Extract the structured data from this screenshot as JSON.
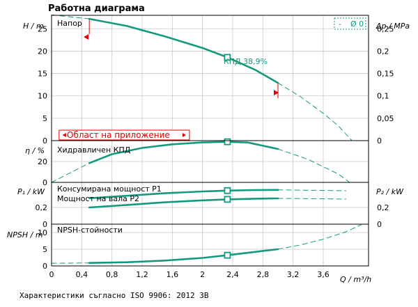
{
  "colors": {
    "curve": "#139a7e",
    "grid": "#c8c8c8",
    "frame": "#000000",
    "range": "#e00000"
  },
  "page_title": "Работна диаграма",
  "footer": "Характеристики съгласно ISO 9906: 2012 3B",
  "legend": {
    "dash_label": "-",
    "series_label": "Ø 0"
  },
  "x_axis": {
    "label": "Q / m³/h",
    "ticks": [
      0,
      0.4,
      0.8,
      1.2,
      1.6,
      2,
      2.4,
      2.8,
      3.2,
      3.6
    ],
    "tick_labels": [
      "0",
      "0,4",
      "0,8",
      "1,2",
      "1,6",
      "2",
      "2,4",
      "2,8",
      "3,2",
      "3,6"
    ],
    "xlim": [
      0,
      4.2
    ]
  },
  "chart_data": [
    {
      "type": "line",
      "panel": "head",
      "title": "Напор",
      "ylabel": "H / m",
      "ylabel_right": "Δp / MPa",
      "ylim": [
        0,
        28
      ],
      "yticks": [
        0,
        5,
        10,
        15,
        20,
        25
      ],
      "yticks_right": [
        "0",
        "0,05",
        "0,1",
        "0,15",
        "0,2",
        "0,25"
      ],
      "series": [
        {
          "line": "solid",
          "x": [
            0.5,
            1.0,
            1.5,
            2.0,
            2.33,
            2.7,
            3.0
          ],
          "y": [
            27.2,
            25.6,
            23.3,
            20.7,
            18.6,
            15.8,
            12.9
          ]
        },
        {
          "line": "dashed",
          "x": [
            0,
            0.5
          ],
          "y": [
            28.1,
            27.2
          ]
        },
        {
          "line": "dashed",
          "x": [
            3.0,
            3.3,
            3.6,
            3.8,
            3.98
          ],
          "y": [
            12.9,
            9.8,
            6.1,
            3.3,
            0
          ]
        }
      ],
      "operating_point": {
        "x": 2.33,
        "y": 18.6,
        "label": "КПД  38,9%"
      },
      "application_range_label": "Област на приложение"
    },
    {
      "type": "line",
      "panel": "efficiency",
      "title": "Хидравличен КПД",
      "ylabel": "η / %",
      "ylim": [
        0,
        40
      ],
      "yticks": [
        0,
        20
      ],
      "series": [
        {
          "line": "solid",
          "x": [
            0.5,
            0.8,
            1.2,
            1.6,
            2.0,
            2.33,
            2.6,
            3.0
          ],
          "y": [
            18.5,
            27.0,
            33.0,
            36.5,
            38.3,
            38.9,
            38.2,
            32.0
          ]
        },
        {
          "line": "dashed",
          "x": [
            0,
            0.5
          ],
          "y": [
            0,
            18.5
          ]
        },
        {
          "line": "dashed",
          "x": [
            3.0,
            3.4,
            3.8,
            3.95
          ],
          "y": [
            32.0,
            22.0,
            8.0,
            0
          ]
        }
      ],
      "operating_point": {
        "x": 2.33,
        "y": 38.9
      }
    },
    {
      "type": "line",
      "panel": "power",
      "ylabel": "P₁ / kW",
      "ylabel_right": "P₂ / kW",
      "ylim": [
        0,
        0.5
      ],
      "yticks": [
        0,
        0.2
      ],
      "ytick_labels": [
        "0",
        "0,2"
      ],
      "series": [
        {
          "name": "Консумирана мощност P1",
          "line": "solid",
          "x": [
            0.5,
            1.0,
            1.5,
            2.0,
            2.33,
            2.7,
            3.0
          ],
          "y": [
            0.31,
            0.34,
            0.37,
            0.392,
            0.402,
            0.408,
            0.41
          ]
        },
        {
          "name": "Консумирана мощност P1",
          "line": "dashed",
          "x": [
            3.0,
            3.5,
            3.9
          ],
          "y": [
            0.41,
            0.405,
            0.4
          ]
        },
        {
          "name": "Мощност на вала P2",
          "line": "solid",
          "x": [
            0.5,
            1.0,
            1.5,
            2.0,
            2.33,
            2.7,
            3.0
          ],
          "y": [
            0.2,
            0.23,
            0.262,
            0.285,
            0.297,
            0.305,
            0.308
          ]
        },
        {
          "name": "Мощност на вала P2",
          "line": "dashed",
          "x": [
            3.0,
            3.5,
            3.9
          ],
          "y": [
            0.308,
            0.305,
            0.3
          ]
        }
      ],
      "operating_points": [
        {
          "x": 2.33,
          "y": 0.402
        },
        {
          "x": 2.33,
          "y": 0.297
        }
      ]
    },
    {
      "type": "line",
      "panel": "npsh",
      "title": "NPSH-стойности",
      "ylabel": "NPSH / m",
      "ylim": [
        0,
        12.5
      ],
      "yticks": [
        0,
        5,
        10
      ],
      "series": [
        {
          "line": "solid",
          "x": [
            0.5,
            1.0,
            1.5,
            2.0,
            2.33,
            2.7,
            3.0
          ],
          "y": [
            0.9,
            1.1,
            1.6,
            2.4,
            3.2,
            4.2,
            5.0
          ]
        },
        {
          "line": "dashed",
          "x": [
            0,
            0.5
          ],
          "y": [
            0.8,
            0.9
          ]
        },
        {
          "line": "dashed",
          "x": [
            3.0,
            3.3,
            3.6,
            3.9,
            4.1
          ],
          "y": [
            5.0,
            6.3,
            8.0,
            10.2,
            12.3
          ]
        }
      ],
      "operating_point": {
        "x": 2.33,
        "y": 3.2
      }
    }
  ]
}
